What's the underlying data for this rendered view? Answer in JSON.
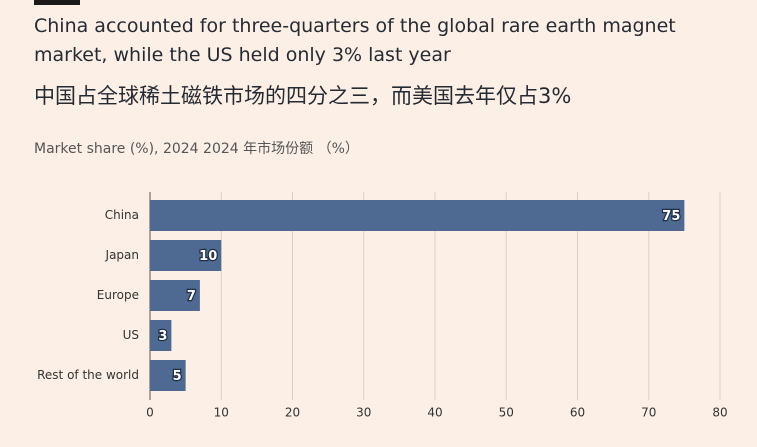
{
  "chart_data": {
    "type": "bar",
    "orientation": "horizontal",
    "title": "China accounted for three-quarters of the global rare earth magnet market, while the US held only 3% last year",
    "subtitle": "中国占全球稀土磁铁市场的四分之三，而美国去年仅占3%",
    "value_axis_label": "Market share (%), 2024  2024 年市场份额 （%）",
    "categories": [
      "China",
      "Japan",
      "Europe",
      "US",
      "Rest of the world"
    ],
    "values": [
      75,
      10,
      7,
      3,
      5
    ],
    "color": "#4e6a92",
    "xlim": [
      0,
      80
    ],
    "xticks": [
      0,
      10,
      20,
      30,
      40,
      50,
      60,
      70,
      80
    ],
    "grid": true
  }
}
